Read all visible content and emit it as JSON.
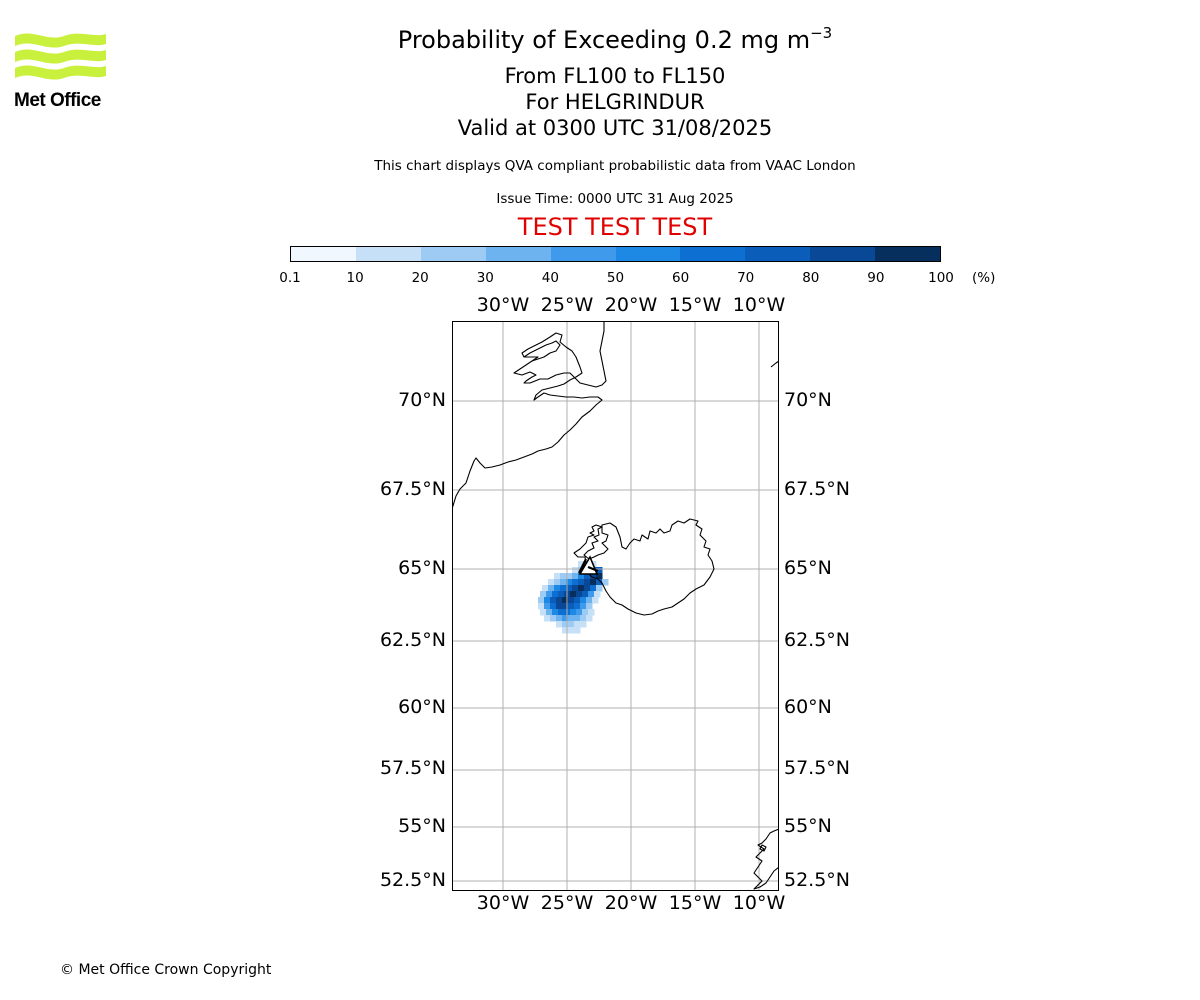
{
  "logo": {
    "text": "Met Office",
    "color": "#c8f03c"
  },
  "title": {
    "main": "Probability of Exceeding 0.2 mg m",
    "main_sup": "−3",
    "level": "From FL100 to FL150",
    "volcano": "For HELGRINDUR",
    "valid": "Valid at 0300 UTC 31/08/2025"
  },
  "description": "This chart displays QVA compliant probabilistic data from VAAC London",
  "issue_time": "Issue Time: 0000 UTC 31 Aug 2025",
  "test_banner": {
    "text": "TEST TEST TEST",
    "color": "#e00000"
  },
  "colorbar": {
    "ticks": [
      "0.1",
      "10",
      "20",
      "30",
      "40",
      "50",
      "60",
      "70",
      "80",
      "90",
      "100"
    ],
    "unit": "(%)",
    "colors": [
      "#f0f7ff",
      "#c6e0f8",
      "#9ecbf3",
      "#6db3ef",
      "#3f9aec",
      "#1e88e5",
      "#0d6fd1",
      "#0a5db8",
      "#084896",
      "#062f5e"
    ]
  },
  "map": {
    "lat_labels": [
      "70°N",
      "67.5°N",
      "65°N",
      "62.5°N",
      "60°N",
      "57.5°N",
      "55°N",
      "52.5°N"
    ],
    "lon_labels": [
      "30°W",
      "25°W",
      "20°W",
      "15°W",
      "10°W"
    ],
    "plume_probability_percent": {
      "peak": 95,
      "extent_approx": "63.2°N–65.2°N, 27.5°W–22.5°W"
    },
    "gridline_color": "#b0b0b0",
    "coastline_color": "#000000"
  },
  "copyright": "© Met Office Crown Copyright"
}
